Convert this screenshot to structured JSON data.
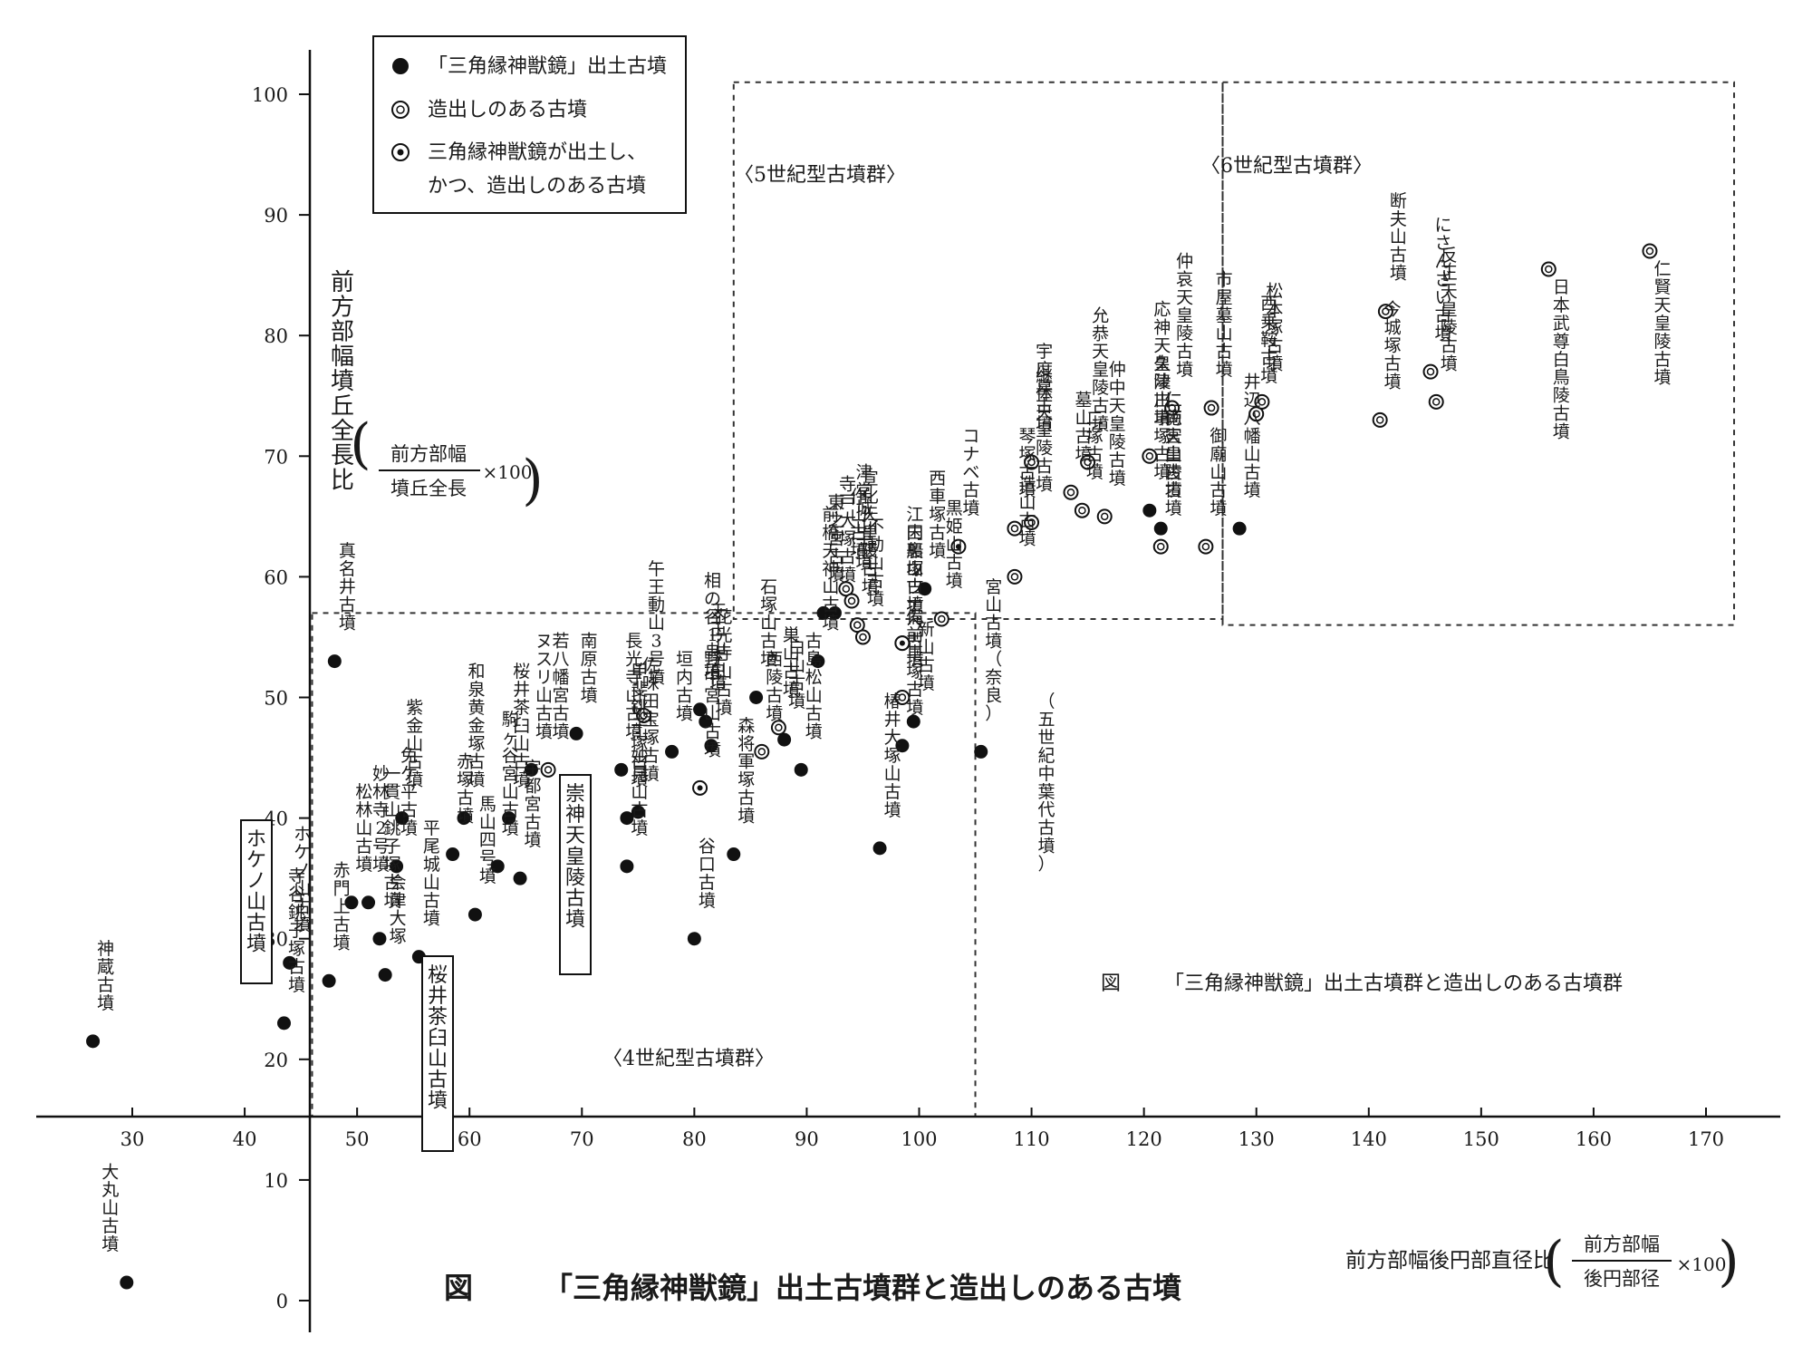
{
  "chart_data": {
    "type": "scatter",
    "title": "「三角縁神獣鏡」出土古墳群と造出しのある古墳",
    "caption_figure": "図",
    "caption_text": "「三角縁神獣鏡」出土古墳群と造出しのある古墳群",
    "xlabel": "前方部幅後円部直径比",
    "xlabel_formula": {
      "numerator": "前方部幅",
      "denominator": "後円部径",
      "multiplier": "×100"
    },
    "ylabel": "前方部幅墳丘全長比",
    "ylabel_formula": {
      "numerator": "前方部幅",
      "denominator": "墳丘全長",
      "multiplier": "×100"
    },
    "xlim": [
      22,
      178
    ],
    "ylim": [
      -3,
      104
    ],
    "x_ticks": [
      "30",
      "40",
      "50",
      "60",
      "70",
      "80",
      "90",
      "100",
      "110",
      "120",
      "130",
      "140",
      "150",
      "160",
      "170"
    ],
    "y_ticks": [
      "0",
      "10",
      "20",
      "30",
      "40",
      "50",
      "60",
      "70",
      "80",
      "90",
      "100"
    ],
    "grid": false,
    "legend": {
      "placement": "top-left",
      "entries": [
        {
          "marker": "filled",
          "label": "「三角縁神獣鏡」出土古墳"
        },
        {
          "marker": "ring",
          "label": "造出しのある古墳"
        },
        {
          "marker": "ring-dot",
          "label": "三角縁神獣鏡が出土し、"
        },
        {
          "marker": "none",
          "label": "かつ、造出しのある古墳"
        }
      ]
    },
    "regions": [
      {
        "label": "〈4世紀型古墳群〉",
        "x": [
          46,
          105
        ],
        "y": [
          0,
          57
        ]
      },
      {
        "label": "〈5世紀型古墳群〉",
        "x": [
          83.5,
          127
        ],
        "y": [
          56.5,
          101
        ]
      },
      {
        "label": "〈6世紀型古墳群〉",
        "x": [
          127,
          172.5
        ],
        "y": [
          56,
          101
        ]
      }
    ],
    "series": [
      {
        "name": "「三角縁神獣鏡」出土古墳",
        "marker": "filled",
        "points": [
          {
            "label": "神蔵古墳",
            "x": 26.5,
            "y": 21.5
          },
          {
            "label": "大丸山古墳",
            "x": 29.5,
            "y": 1.5
          },
          {
            "label": "寺谷銚子塚古墳",
            "x": 43.5,
            "y": 23
          },
          {
            "label": "ホケノ山古墳",
            "x": 44,
            "y": 28
          },
          {
            "label": "赤門上古墳",
            "x": 47.5,
            "y": 26.5
          },
          {
            "label": "真名井古墳",
            "x": 48,
            "y": 53
          },
          {
            "label": "松林山古墳",
            "x": 49.5,
            "y": 33
          },
          {
            "label": "妙林寺2号墳",
            "x": 51,
            "y": 33
          },
          {
            "label": "一貫山銚子塚古墳",
            "x": 52,
            "y": 30
          },
          {
            "label": "会津大塚",
            "x": 52.5,
            "y": 27
          },
          {
            "label": "免ケ平古墳",
            "x": 53.5,
            "y": 36
          },
          {
            "label": "紫金山古墳",
            "x": 54,
            "y": 40
          },
          {
            "label": "平尾城山古墳",
            "x": 55.5,
            "y": 28.5
          },
          {
            "label": "赤塚古墳",
            "x": 58.5,
            "y": 37
          },
          {
            "label": "馬山四号墳",
            "x": 60.5,
            "y": 32
          },
          {
            "label": "和泉黄金塚古墳",
            "x": 59.5,
            "y": 40
          },
          {
            "label": "駒ヶ谷宮山古墳",
            "x": 62.5,
            "y": 36
          },
          {
            "label": "桜井茶臼山古墳",
            "x": 63.5,
            "y": 40
          },
          {
            "label": "宇都宮古墳",
            "x": 64.5,
            "y": 35
          },
          {
            "label": "ヌスリ山古墳",
            "x": 65.5,
            "y": 44
          },
          {
            "label": "南原古墳",
            "x": 69.5,
            "y": 47
          },
          {
            "label": "長光寺山古墳",
            "x": 73.5,
            "y": 44
          },
          {
            "label": "甲斐銚子塚古墳",
            "x": 74,
            "y": 40
          },
          {
            "label": "妙見山古墳",
            "x": 74,
            "y": 36
          },
          {
            "label": "佐味田宝塚古墳",
            "x": 75,
            "y": 40.5
          },
          {
            "label": "垣内古墳",
            "x": 78,
            "y": 45.5
          },
          {
            "label": "谷口古墳",
            "x": 80,
            "y": 30
          },
          {
            "label": "相の谷1号墳",
            "x": 80.5,
            "y": 49
          },
          {
            "label": "天王山古墳",
            "x": 81,
            "y": 48
          },
          {
            "label": "花光寺山古墳",
            "x": 81.5,
            "y": 46
          },
          {
            "label": "森将軍塚古墳",
            "x": 83.5,
            "y": 37
          },
          {
            "label": "石塚山古墳",
            "x": 85.5,
            "y": 50
          },
          {
            "label": "白山古墳",
            "x": 88,
            "y": 46.5
          },
          {
            "label": "古島松山古墳",
            "x": 89.5,
            "y": 44
          },
          {
            "label": "前橋天神山古墳",
            "x": 91,
            "y": 53
          },
          {
            "label": "東之宮古墳",
            "x": 91.5,
            "y": 57
          },
          {
            "label": "寺戸大塚古墳",
            "x": 92.5,
            "y": 57
          },
          {
            "label": "椿井大塚山古墳",
            "x": 96.5,
            "y": 37.5
          },
          {
            "label": "備前車塚古墳",
            "x": 98.5,
            "y": 46
          },
          {
            "label": "新山古墳",
            "x": 99.5,
            "y": 48
          },
          {
            "label": "西車塚古墳",
            "x": 100.5,
            "y": 59
          },
          {
            "label": "宮山古墳（奈良）",
            "x": 105.5,
            "y": 45.5
          },
          {
            "label": "久津川車塚古墳",
            "x": 120.5,
            "y": 65.5
          },
          {
            "label": "両宮山古墳",
            "x": 121.5,
            "y": 64
          },
          {
            "label": "井辺八幡山古墳",
            "x": 128.5,
            "y": 64
          }
        ]
      },
      {
        "name": "造出しのある古墳",
        "marker": "ring",
        "points": [
          {
            "label": "若八幡宮古墳",
            "x": 67,
            "y": 44
          },
          {
            "label": "午王動山3号墳",
            "x": 75.5,
            "y": 48.5
          },
          {
            "label": "西陵古墳",
            "x": 86,
            "y": 45.5
          },
          {
            "label": "巣山古墳",
            "x": 87.5,
            "y": 47.5
          },
          {
            "label": "作山古墳",
            "x": 93.5,
            "y": 59
          },
          {
            "label": "津堂城山古墳",
            "x": 94,
            "y": 58
          },
          {
            "label": "宣化天皇陵古墳",
            "x": 94.5,
            "y": 56
          },
          {
            "label": "不動山古墳",
            "x": 95,
            "y": 55
          },
          {
            "label": "江田船山古墳",
            "x": 98.5,
            "y": 54.5
          },
          {
            "label": "ウワナベ古墳",
            "x": 98.5,
            "y": 50
          },
          {
            "label": "黒姫山古墳",
            "x": 102,
            "y": 56.5
          },
          {
            "label": "造山古墳",
            "x": 108.5,
            "y": 60
          },
          {
            "label": "琴塚古墳",
            "x": 108.5,
            "y": 64
          },
          {
            "label": "宇度墓古墳",
            "x": 110,
            "y": 69.5
          },
          {
            "label": "継体天皇陵古墳",
            "x": 110,
            "y": 64.5
          },
          {
            "label": "墓山古墳",
            "x": 113.5,
            "y": 67
          },
          {
            "label": "二塚古墳",
            "x": 114.5,
            "y": 65.5
          },
          {
            "label": "允恭天皇陵古墳",
            "x": 115,
            "y": 69.5
          },
          {
            "label": "仲中天皇陵古墳",
            "x": 116.5,
            "y": 65
          },
          {
            "label": "応神天皇陵古墳",
            "x": 120.5,
            "y": 70
          },
          {
            "label": "仁徳天皇陵古墳",
            "x": 121.5,
            "y": 62.5
          },
          {
            "label": "仲哀天皇陵古墳",
            "x": 122.5,
            "y": 74
          },
          {
            "label": "御廟山古墳",
            "x": 125.5,
            "y": 62.5
          },
          {
            "label": "市屋墓山古墳",
            "x": 126,
            "y": 74
          },
          {
            "label": "西乗鞍古墳",
            "x": 130,
            "y": 73.5
          },
          {
            "label": "松本塚古墳",
            "x": 130.5,
            "y": 74.5
          },
          {
            "label": "今城塚古墳",
            "x": 141,
            "y": 73
          },
          {
            "label": "断夫山古墳",
            "x": 141.5,
            "y": 82
          },
          {
            "label": "反正天皇陵古墳",
            "x": 146,
            "y": 74.5
          },
          {
            "label": "にさんざい古墳",
            "x": 145.5,
            "y": 77
          },
          {
            "label": "日本武尊白鳥陵古墳",
            "x": 156,
            "y": 85.5
          },
          {
            "label": "仁賢天皇陵古墳",
            "x": 165,
            "y": 87
          }
        ]
      },
      {
        "name": "三角縁神獣鏡が出土し、かつ、造出しのある古墳",
        "marker": "ring-dot",
        "points": [
          {
            "label": "野中宮山古墳",
            "x": 80.5,
            "y": 42.5
          },
          {
            "label": "内裏塚古墳",
            "x": 98.5,
            "y": 54.5
          },
          {
            "label": "コナベ古墳",
            "x": 103.5,
            "y": 62.5
          }
        ]
      }
    ],
    "annotations": [
      {
        "text": "ホケノ山古墳",
        "boxed": true
      },
      {
        "text": "崇神天皇陵古墳",
        "boxed": true
      },
      {
        "text": "桜井茶臼山古墳",
        "boxed": true
      },
      {
        "text": "（五世紀中葉代古墳）",
        "boxed": false
      }
    ]
  }
}
